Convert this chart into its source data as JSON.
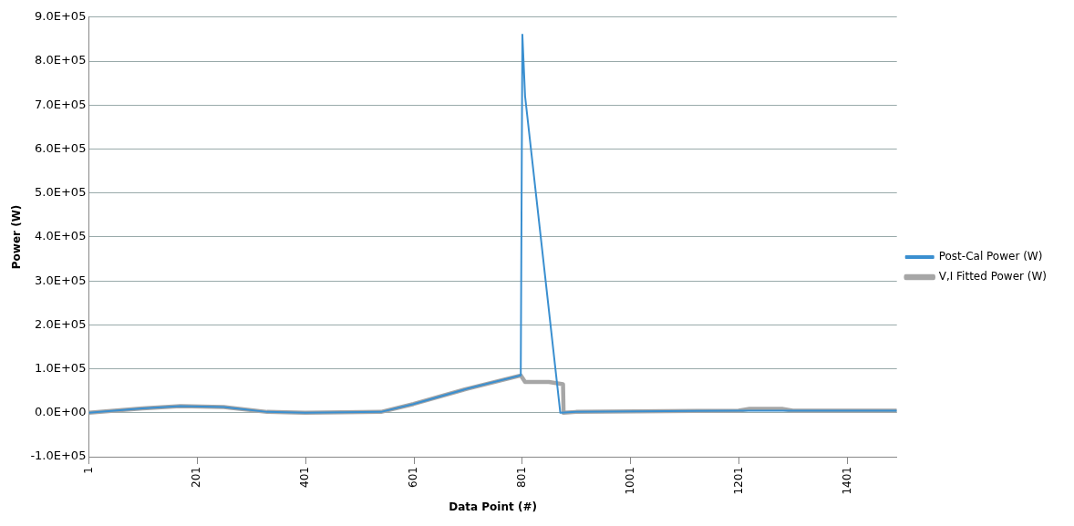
{
  "chart_data": {
    "type": "line",
    "xlabel": "Data Point (#)",
    "ylabel": "Power (W)",
    "xlim": [
      1,
      1492
    ],
    "xticks": [
      1,
      201,
      401,
      601,
      801,
      1001,
      1201,
      1401
    ],
    "ylim": [
      -100000,
      900000
    ],
    "yticks": [
      {
        "value": -100000,
        "label": "-1.0E+05"
      },
      {
        "value": 0,
        "label": "0.0E+00"
      },
      {
        "value": 100000,
        "label": "1.0E+05"
      },
      {
        "value": 200000,
        "label": "2.0E+05"
      },
      {
        "value": 300000,
        "label": "3.0E+05"
      },
      {
        "value": 400000,
        "label": "4.0E+05"
      },
      {
        "value": 500000,
        "label": "5.0E+05"
      },
      {
        "value": 600000,
        "label": "6.0E+05"
      },
      {
        "value": 700000,
        "label": "7.0E+05"
      },
      {
        "value": 800000,
        "label": "8.0E+05"
      },
      {
        "value": 900000,
        "label": "9.0E+05"
      }
    ],
    "grid": "y",
    "legend": "right",
    "marker": "none",
    "line_style": "solid",
    "series": [
      {
        "name": "Post-Cal Power (W)",
        "color": "#3a8fd0",
        "x": [
          1,
          100,
          170,
          250,
          330,
          400,
          540,
          600,
          700,
          798,
          801,
          806,
          871,
          900,
          1200,
          1280,
          1492
        ],
        "values": [
          0,
          10000,
          15000,
          13000,
          2000,
          0,
          2000,
          20000,
          55000,
          85000,
          860000,
          720000,
          0,
          2000,
          5000,
          5000,
          5000
        ]
      },
      {
        "name": "V,I Fitted Power (W)",
        "color": "#a6a6a6",
        "x": [
          1,
          100,
          170,
          250,
          330,
          400,
          540,
          600,
          700,
          798,
          806,
          850,
          876,
          877,
          900,
          1200,
          1220,
          1280,
          1300,
          1492
        ],
        "values": [
          0,
          10000,
          15000,
          13000,
          2000,
          0,
          2000,
          20000,
          55000,
          85000,
          70000,
          70000,
          65000,
          0,
          2000,
          5000,
          9000,
          9000,
          5000,
          5000
        ]
      }
    ]
  }
}
